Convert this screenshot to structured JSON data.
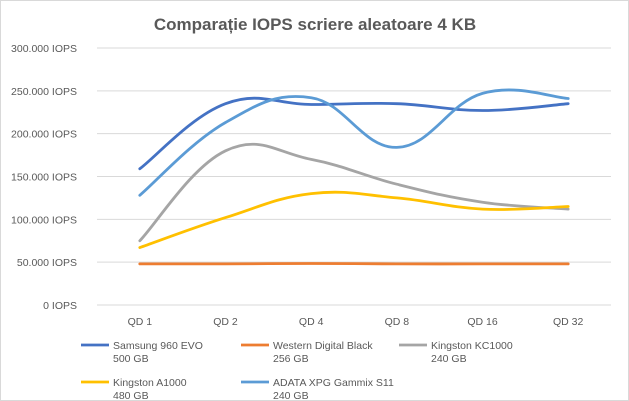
{
  "chart_data": {
    "type": "line",
    "title": "Comparație IOPS scriere aleatoare 4 KB",
    "xlabel": "",
    "ylabel": "",
    "categories": [
      "QD 1",
      "QD 2",
      "QD 4",
      "QD 8",
      "QD 16",
      "QD 32"
    ],
    "ylim": [
      0,
      300000
    ],
    "y_ticks": [
      "0 IOPS",
      "50.000 IOPS",
      "100.000 IOPS",
      "150.000 IOPS",
      "200.000 IOPS",
      "250.000 IOPS",
      "300.000 IOPS"
    ],
    "grid": true,
    "legend_position": "bottom",
    "series": [
      {
        "name": "Samsung 960 EVO",
        "subname": "500 GB",
        "color": "#4472c4",
        "values": [
          159000,
          235000,
          234000,
          235000,
          227000,
          235000
        ]
      },
      {
        "name": "Western Digital Black",
        "subname": "256 GB",
        "color": "#ed7d31",
        "values": [
          48000,
          48000,
          48500,
          48000,
          48000,
          48000
        ]
      },
      {
        "name": "Kingston KC1000",
        "subname": "240 GB",
        "color": "#a5a5a5",
        "values": [
          75000,
          180000,
          170000,
          141000,
          120000,
          112000
        ]
      },
      {
        "name": "Kingston A1000",
        "subname": "480 GB",
        "color": "#ffc000",
        "values": [
          67000,
          102000,
          130000,
          125000,
          112000,
          115000
        ]
      },
      {
        "name": "ADATA XPG Gammix S11",
        "subname": "240 GB",
        "color": "#5b9bd5",
        "values": [
          128000,
          213000,
          242000,
          184000,
          247000,
          241000
        ]
      }
    ]
  }
}
